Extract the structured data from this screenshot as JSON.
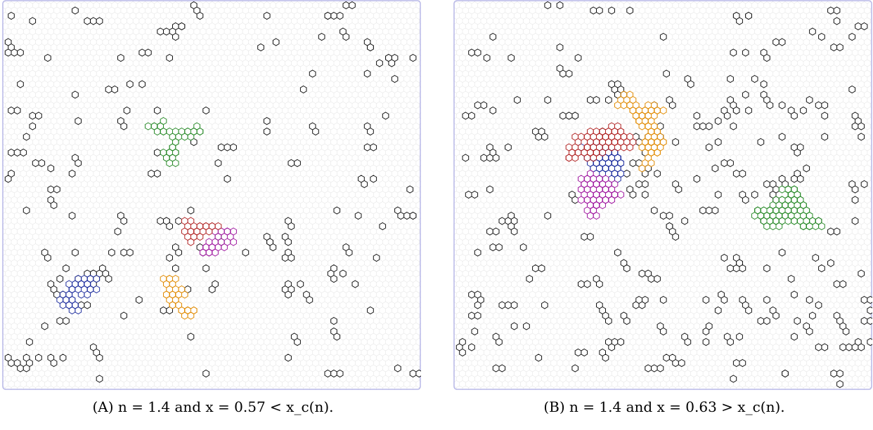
{
  "figure": {
    "panels": [
      {
        "id": "A",
        "label": "(A)",
        "caption": "n = 1.4 and x = 0.57 < x_c(n).",
        "n": 1.4,
        "x": 0.57,
        "relation": "<",
        "highlighted_loop_colors": [
          "#1f2f9e",
          "#a01aa0",
          "#e08a00",
          "#2a8a2a",
          "#b02222"
        ]
      },
      {
        "id": "B",
        "label": "(B)",
        "caption": "n = 1.4 and x = 0.63 > x_c(n).",
        "n": 1.4,
        "x": 0.63,
        "relation": ">",
        "highlighted_loop_colors": [
          "#1f2f9e",
          "#a01aa0",
          "#e08a00",
          "#2a8a2a",
          "#b02222"
        ]
      }
    ],
    "colors": {
      "lattice": "#e6e6e6",
      "border": "#b8b8e8",
      "loop_small": "#111111"
    }
  }
}
